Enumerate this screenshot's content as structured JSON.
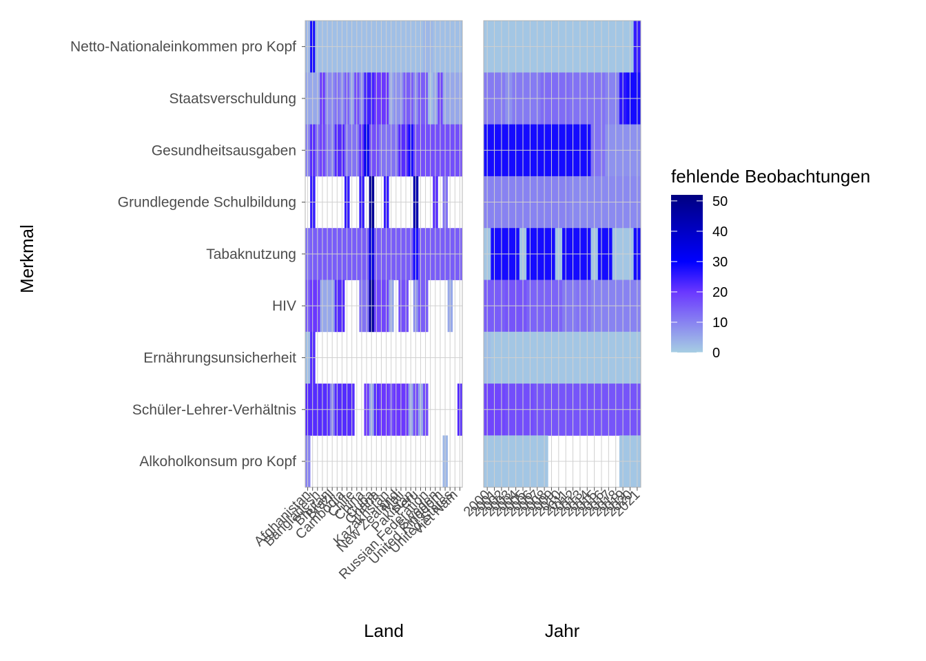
{
  "chart_data": {
    "type": "heatmap",
    "title": "",
    "ylabel": "Merkmal",
    "rows": [
      "Netto-Nationaleinkommen pro Kopf",
      "Staatsverschuldung",
      "Gesundheitsausgaben",
      "Grundlegende Schulbildung",
      "Tabaknutzung",
      "HIV",
      "Ernährungsunsicherheit",
      "Schüler-Lehrer-Verhältnis",
      "Alkoholkonsum pro Kopf"
    ],
    "color_scale": {
      "title": "fehlende Beobachtungen",
      "ticks": [
        0,
        10,
        20,
        30,
        40,
        50
      ],
      "limits": [
        0,
        52
      ],
      "stops": [
        {
          "value": 0,
          "color": "#a6cee3"
        },
        {
          "value": 20,
          "color": "#6a37ff"
        },
        {
          "value": 30,
          "color": "#0000ff"
        },
        {
          "value": 52,
          "color": "#000080"
        }
      ]
    },
    "panels": [
      {
        "xlabel": "Land",
        "categories": [
          "Afghanistan",
          "",
          "Bangladesh",
          "",
          "Bhutan",
          "Brazil",
          "",
          "Cambodia",
          "",
          "Chile",
          "",
          "China",
          "",
          "Cuba",
          "Ghana",
          "",
          "Kazakhstan",
          "",
          "New Zealand",
          "Mali",
          "",
          "Pakistan",
          "Peru",
          "",
          "Russian Federation",
          "",
          "Sweden",
          "United Kingdom",
          "",
          "United States",
          "Viet Nam",
          ""
        ],
        "values": [
          [
            3,
            28,
            2,
            2,
            2,
            2,
            2,
            2,
            2,
            2,
            2,
            2,
            2,
            2,
            2,
            2,
            2,
            2,
            2,
            2,
            2,
            2,
            2,
            2,
            3,
            3,
            2,
            2,
            2,
            2,
            2,
            2
          ],
          [
            5,
            5,
            5,
            20,
            9,
            9,
            12,
            9,
            14,
            6,
            17,
            9,
            24,
            24,
            20,
            20,
            20,
            5,
            8,
            8,
            15,
            15,
            9,
            15,
            15,
            2,
            5,
            18,
            5,
            5,
            5,
            5
          ],
          [
            10,
            22,
            13,
            19,
            12,
            10,
            22,
            22,
            12,
            12,
            12,
            21,
            33,
            17,
            17,
            12,
            12,
            12,
            12,
            22,
            22,
            28,
            17,
            17,
            17,
            17,
            17,
            17,
            17,
            17,
            17,
            17
          ],
          [
            null,
            25,
            null,
            null,
            null,
            null,
            null,
            null,
            25,
            null,
            null,
            25,
            null,
            48,
            null,
            null,
            25,
            null,
            null,
            null,
            null,
            null,
            44,
            null,
            null,
            null,
            22,
            null,
            12,
            null,
            null,
            null
          ],
          [
            12,
            15,
            15,
            15,
            15,
            15,
            15,
            15,
            15,
            15,
            15,
            15,
            15,
            36,
            15,
            15,
            15,
            15,
            15,
            15,
            15,
            15,
            28,
            15,
            15,
            15,
            15,
            15,
            15,
            15,
            15,
            15
          ],
          [
            15,
            20,
            20,
            5,
            5,
            5,
            22,
            22,
            null,
            null,
            null,
            12,
            12,
            48,
            18,
            18,
            18,
            5,
            null,
            17,
            17,
            null,
            8,
            15,
            15,
            null,
            null,
            null,
            null,
            5,
            null,
            null
          ],
          [
            2,
            22,
            null,
            null,
            null,
            null,
            null,
            null,
            null,
            null,
            null,
            null,
            null,
            null,
            null,
            null,
            null,
            null,
            null,
            null,
            null,
            null,
            null,
            null,
            null,
            null,
            null,
            null,
            null,
            null,
            null,
            null
          ],
          [
            22,
            22,
            22,
            22,
            22,
            10,
            22,
            22,
            22,
            22,
            null,
            null,
            20,
            5,
            22,
            20,
            20,
            17,
            20,
            20,
            20,
            5,
            17,
            5,
            17,
            null,
            null,
            null,
            null,
            null,
            null,
            22
          ],
          [
            10,
            null,
            null,
            null,
            null,
            null,
            null,
            null,
            null,
            null,
            null,
            null,
            null,
            null,
            null,
            null,
            null,
            null,
            null,
            null,
            null,
            null,
            null,
            null,
            null,
            null,
            null,
            null,
            3,
            null,
            null,
            null
          ]
        ]
      },
      {
        "xlabel": "Jahr",
        "categories": [
          "2000",
          "2001",
          "2002",
          "2003",
          "2004",
          "2005",
          "2006",
          "2007",
          "2008",
          "2009",
          "2010",
          "2011",
          "2012",
          "2013",
          "2014",
          "2015",
          "2016",
          "2017",
          "2018",
          "2019",
          "2020",
          "2021"
        ],
        "values": [
          [
            1,
            1,
            1,
            1,
            1,
            1,
            1,
            1,
            1,
            1,
            1,
            1,
            1,
            1,
            1,
            1,
            1,
            1,
            1,
            1,
            1,
            25
          ],
          [
            11,
            11,
            11,
            8,
            11,
            11,
            11,
            11,
            13,
            13,
            13,
            13,
            12,
            12,
            12,
            12,
            12,
            10,
            10,
            26,
            28,
            28
          ],
          [
            28,
            28,
            28,
            28,
            28,
            28,
            28,
            28,
            28,
            28,
            28,
            28,
            28,
            28,
            28,
            12,
            12,
            8,
            8,
            8,
            8,
            8
          ],
          [
            10,
            10,
            10,
            10,
            10,
            10,
            10,
            10,
            10,
            10,
            10,
            10,
            9,
            9,
            9,
            9,
            9,
            9,
            9,
            9,
            9,
            9
          ],
          [
            1,
            28,
            28,
            28,
            28,
            1,
            28,
            28,
            28,
            28,
            1,
            28,
            28,
            28,
            28,
            1,
            28,
            28,
            1,
            1,
            1,
            28
          ],
          [
            15,
            15,
            15,
            16,
            16,
            16,
            14,
            14,
            14,
            14,
            14,
            11,
            11,
            12,
            12,
            10,
            10,
            10,
            10,
            10,
            10,
            10
          ],
          [
            2,
            1,
            1,
            1,
            1,
            1,
            1,
            1,
            1,
            1,
            1,
            1,
            1,
            1,
            1,
            1,
            1,
            1,
            1,
            1,
            1,
            1
          ],
          [
            18,
            18,
            18,
            17,
            17,
            17,
            17,
            16,
            16,
            16,
            16,
            16,
            16,
            16,
            16,
            16,
            16,
            16,
            16,
            16,
            16,
            16
          ],
          [
            1,
            1,
            1,
            1,
            1,
            1,
            1,
            1,
            1,
            null,
            null,
            null,
            null,
            null,
            null,
            null,
            null,
            null,
            null,
            1,
            1,
            1
          ]
        ]
      }
    ]
  }
}
